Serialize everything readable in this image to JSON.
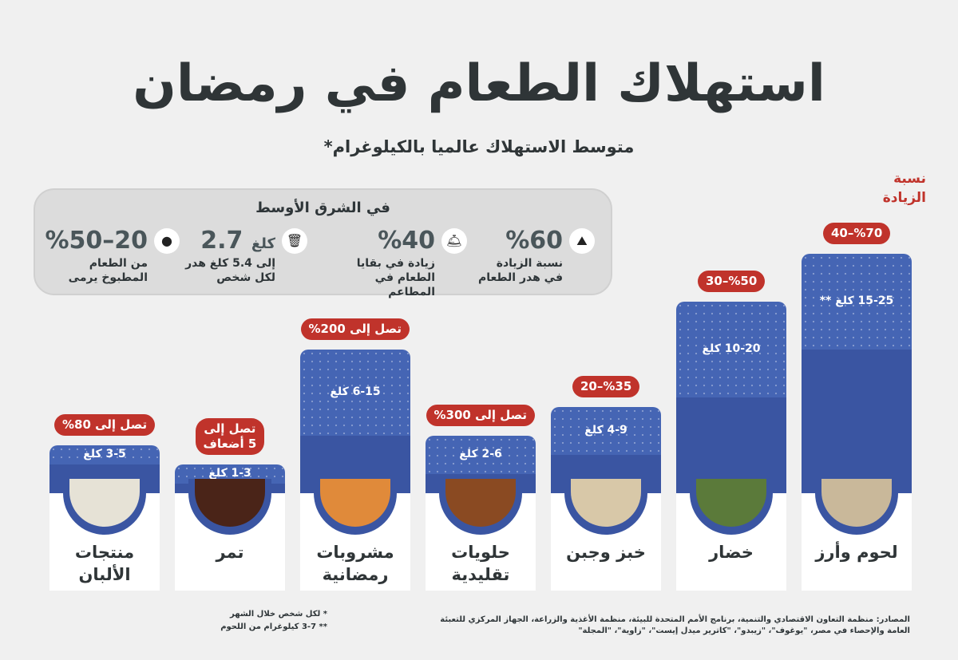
{
  "title": "استهلاك الطعام في رمضان",
  "subtitle": "متوسط الاستهلاك عالميا بالكيلوغرام*",
  "increase_header": "نسبة الزيادة",
  "middle_east": {
    "title": "في الشرق الأوسط",
    "stats": [
      {
        "icon": "garbage-pile-icon",
        "value": "%60",
        "desc1": "نسبة الزيادة",
        "desc2": "في هدر الطعام"
      },
      {
        "icon": "food-cloche-icon",
        "value": "%40",
        "desc1": "زيادة في بقايا",
        "desc2": "الطعام في المطاعم"
      },
      {
        "icon": "trash-bin-icon",
        "value": "2.7",
        "unit": "كلغ",
        "desc1": "إلى 5.4 كلغ هدر",
        "desc2": "لكل شخص"
      },
      {
        "icon": "plate-food-icon",
        "value": "%50–20",
        "desc1": "من الطعام",
        "desc2": "المطبوخ يرمى"
      }
    ]
  },
  "colors": {
    "bar": "#3a55a2",
    "bar_upper": "#4565b4",
    "badge": "#c0332b",
    "background": "#f0f0f0"
  },
  "chart_data": {
    "type": "bar",
    "unit": "كلغ",
    "categories": [
      "لحوم وأرز",
      "خضار",
      "خبز وجبن",
      "حلويات تقليدية",
      "مشروبات رمضانية",
      "تمر",
      "منتجات الألبان"
    ],
    "category_lines": [
      [
        "لحوم وأرز"
      ],
      [
        "خضار"
      ],
      [
        "خبز وجبن"
      ],
      [
        "حلويات",
        "تقليدية"
      ],
      [
        "مشروبات",
        "رمضانية"
      ],
      [
        "تمر"
      ],
      [
        "منتجات",
        "الألبان"
      ]
    ],
    "min_values": [
      15,
      10,
      4,
      2,
      6,
      1,
      3
    ],
    "max_values": [
      25,
      20,
      9,
      6,
      15,
      3,
      5
    ],
    "value_labels": [
      "15-25 كلغ **",
      "10-20 كلغ",
      "4-9 كلغ",
      "2-6 كلغ",
      "6-15 كلغ",
      "1-3 كلغ",
      "3-5 كلغ"
    ],
    "increase_labels": [
      [
        "%70–40"
      ],
      [
        "%50–30"
      ],
      [
        "%35–20"
      ],
      [
        "تصل إلى 300%"
      ],
      [
        "تصل إلى 200%"
      ],
      [
        "تصل إلى",
        "5 أضعاف"
      ],
      [
        "تصل إلى 80%"
      ]
    ],
    "plate_colors": [
      "#c9b89a",
      "#5b7a3a",
      "#d8c8a8",
      "#8a4a22",
      "#e08a3a",
      "#4a2418",
      "#e6e2d6"
    ]
  },
  "notes": [
    "* لكل شخص خلال الشهر",
    "** 3-7 كيلوغرام من اللحوم"
  ],
  "sources": "المصادر: منظمة التعاون الاقتصادي والتنمية، برنامج الأمم المتحدة للبيئة، منظمة الأغذية والزراعة، الجهاز المركزي للتعبئة العامة والإحصاء في مصر، \"يوغوف\"، \"زيبدو\"، \"كاترير ميدل إيست\"، \"زاوية\"، \"المجلة\""
}
